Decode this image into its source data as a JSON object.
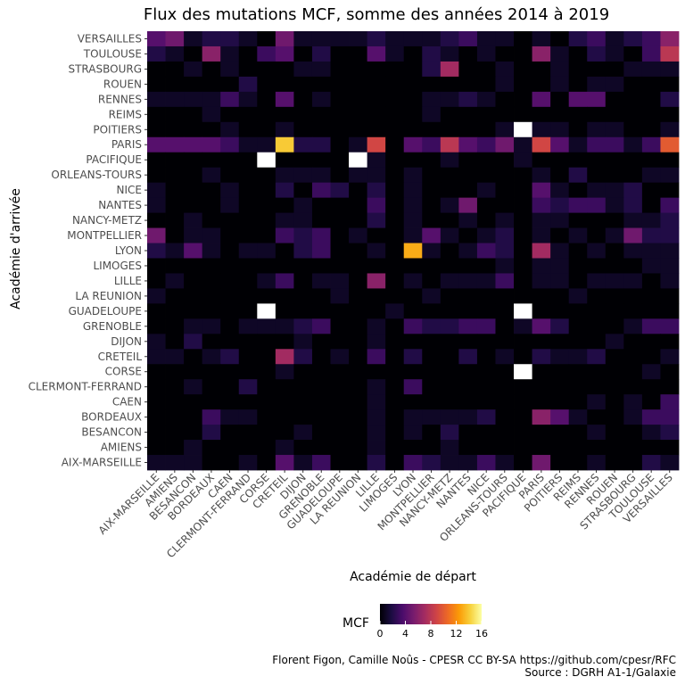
{
  "chart_data": {
    "type": "heatmap",
    "title": "Flux des mutations MCF, somme des années 2014 à 2019",
    "xlabel": "Académie de départ",
    "ylabel": "Académie d'arrivée",
    "x": [
      "AIX-MARSEILLE",
      "AMIENS",
      "BESANCON",
      "BORDEAUX",
      "CAEN",
      "CLERMONT-FERRAND",
      "CORSE",
      "CRETEIL",
      "DIJON",
      "GRENOBLE",
      "GUADELOUPE",
      "LA REUNION",
      "LILLE",
      "LIMOGES",
      "LYON",
      "MONTPELLIER",
      "NANCY-METZ",
      "NANTES",
      "NICE",
      "ORLEANS-TOURS",
      "PACIFIQUE",
      "PARIS",
      "POITIERS",
      "REIMS",
      "RENNES",
      "ROUEN",
      "STRASBOURG",
      "TOULOUSE",
      "VERSAILLES"
    ],
    "y": [
      "VERSAILLES",
      "TOULOUSE",
      "STRASBOURG",
      "ROUEN",
      "RENNES",
      "REIMS",
      "POITIERS",
      "PARIS",
      "PACIFIQUE",
      "ORLEANS-TOURS",
      "NICE",
      "NANTES",
      "NANCY-METZ",
      "MONTPELLIER",
      "LYON",
      "LIMOGES",
      "LILLE",
      "LA REUNION",
      "GUADELOUPE",
      "GRENOBLE",
      "DIJON",
      "CRETEIL",
      "CORSE",
      "CLERMONT-FERRAND",
      "CAEN",
      "BORDEAUX",
      "BESANCON",
      "AMIENS",
      "AIX-MARSEILLE"
    ],
    "values": [
      [
        4,
        5,
        1,
        2,
        2,
        1,
        0,
        5,
        1,
        1,
        1,
        1,
        2,
        1,
        1,
        1,
        2,
        3,
        1,
        1,
        0,
        1,
        0,
        2,
        3,
        1,
        2,
        3,
        6
      ],
      [
        2,
        1,
        0,
        6,
        1,
        0,
        3,
        4,
        0,
        2,
        0,
        0,
        4,
        1,
        0,
        2,
        1,
        0,
        1,
        0,
        0,
        6,
        1,
        0,
        2,
        1,
        0,
        3,
        8
      ],
      [
        0,
        0,
        1,
        0,
        1,
        0,
        0,
        0,
        1,
        1,
        0,
        0,
        0,
        0,
        0,
        2,
        7,
        0,
        0,
        1,
        0,
        0,
        1,
        0,
        0,
        0,
        1,
        1,
        1
      ],
      [
        0,
        0,
        0,
        0,
        0,
        2,
        0,
        0,
        0,
        0,
        0,
        0,
        0,
        0,
        0,
        0,
        0,
        0,
        0,
        1,
        0,
        0,
        1,
        0,
        1,
        1,
        0,
        0,
        0
      ],
      [
        1,
        1,
        1,
        1,
        3,
        1,
        0,
        4,
        0,
        1,
        0,
        0,
        0,
        0,
        0,
        1,
        1,
        2,
        1,
        0,
        0,
        4,
        0,
        4,
        4,
        0,
        0,
        0,
        2
      ],
      [
        0,
        0,
        0,
        1,
        0,
        0,
        0,
        0,
        0,
        0,
        0,
        0,
        0,
        0,
        0,
        1,
        0,
        0,
        0,
        0,
        0,
        0,
        0,
        0,
        0,
        0,
        0,
        0,
        0
      ],
      [
        0,
        0,
        0,
        0,
        1,
        0,
        0,
        1,
        0,
        0,
        0,
        0,
        0,
        0,
        0,
        0,
        0,
        0,
        0,
        1,
        16,
        1,
        1,
        0,
        1,
        1,
        0,
        0,
        1
      ],
      [
        4,
        4,
        4,
        4,
        3,
        1,
        1,
        14,
        2,
        2,
        0,
        1,
        9,
        0,
        4,
        3,
        8,
        4,
        3,
        5,
        1,
        9,
        4,
        1,
        3,
        3,
        1,
        3,
        10
      ],
      [
        0,
        0,
        0,
        0,
        0,
        0,
        16,
        0,
        0,
        0,
        0,
        16,
        1,
        0,
        0,
        0,
        1,
        0,
        0,
        0,
        1,
        0,
        0,
        0,
        0,
        0,
        0,
        0,
        0
      ],
      [
        0,
        0,
        0,
        1,
        0,
        0,
        0,
        1,
        1,
        1,
        0,
        1,
        1,
        0,
        1,
        0,
        0,
        0,
        0,
        0,
        0,
        1,
        0,
        2,
        0,
        0,
        0,
        1,
        1
      ],
      [
        1,
        0,
        0,
        0,
        1,
        0,
        0,
        2,
        0,
        3,
        2,
        0,
        2,
        0,
        1,
        0,
        0,
        0,
        1,
        0,
        0,
        4,
        1,
        0,
        1,
        1,
        2,
        0,
        0
      ],
      [
        1,
        0,
        0,
        0,
        1,
        0,
        0,
        0,
        1,
        0,
        0,
        0,
        3,
        0,
        1,
        0,
        1,
        5,
        0,
        0,
        0,
        3,
        2,
        3,
        3,
        1,
        2,
        0,
        3
      ],
      [
        0,
        0,
        1,
        0,
        0,
        0,
        0,
        1,
        1,
        0,
        0,
        0,
        2,
        0,
        1,
        0,
        0,
        1,
        0,
        1,
        0,
        1,
        1,
        0,
        0,
        0,
        1,
        1,
        2
      ],
      [
        5,
        0,
        1,
        1,
        0,
        0,
        0,
        3,
        2,
        3,
        0,
        1,
        0,
        0,
        1,
        4,
        1,
        0,
        1,
        2,
        0,
        1,
        0,
        1,
        0,
        1,
        5,
        2,
        2
      ],
      [
        2,
        1,
        4,
        1,
        0,
        1,
        1,
        0,
        2,
        3,
        0,
        0,
        1,
        0,
        13,
        1,
        0,
        1,
        3,
        2,
        0,
        7,
        1,
        0,
        1,
        0,
        1,
        1,
        1
      ],
      [
        0,
        0,
        0,
        0,
        0,
        0,
        0,
        0,
        0,
        0,
        0,
        0,
        0,
        0,
        0,
        0,
        0,
        0,
        0,
        1,
        0,
        1,
        1,
        0,
        0,
        0,
        0,
        1,
        1
      ],
      [
        0,
        1,
        0,
        0,
        0,
        0,
        1,
        3,
        0,
        1,
        1,
        0,
        6,
        0,
        1,
        0,
        1,
        1,
        1,
        3,
        0,
        1,
        1,
        0,
        1,
        1,
        1,
        0,
        1
      ],
      [
        1,
        0,
        0,
        0,
        0,
        0,
        0,
        0,
        0,
        0,
        1,
        0,
        0,
        0,
        0,
        1,
        0,
        0,
        0,
        0,
        0,
        0,
        0,
        1,
        0,
        0,
        0,
        0,
        0
      ],
      [
        0,
        0,
        0,
        0,
        0,
        0,
        16,
        0,
        0,
        0,
        0,
        0,
        0,
        1,
        0,
        0,
        0,
        0,
        0,
        0,
        16,
        0,
        0,
        0,
        0,
        0,
        0,
        0,
        0
      ],
      [
        0,
        0,
        1,
        1,
        0,
        1,
        1,
        1,
        2,
        3,
        0,
        0,
        1,
        0,
        3,
        2,
        2,
        3,
        3,
        0,
        1,
        4,
        2,
        0,
        0,
        0,
        1,
        3,
        3
      ],
      [
        1,
        0,
        2,
        0,
        0,
        0,
        0,
        0,
        1,
        0,
        0,
        0,
        1,
        0,
        0,
        0,
        0,
        0,
        0,
        0,
        0,
        0,
        0,
        0,
        0,
        1,
        0,
        0,
        0
      ],
      [
        1,
        1,
        0,
        1,
        2,
        0,
        0,
        7,
        2,
        0,
        1,
        0,
        3,
        0,
        2,
        0,
        0,
        2,
        0,
        1,
        0,
        2,
        1,
        1,
        2,
        0,
        0,
        0,
        1
      ],
      [
        0,
        0,
        0,
        0,
        0,
        0,
        0,
        1,
        0,
        0,
        0,
        0,
        0,
        0,
        0,
        0,
        0,
        0,
        0,
        0,
        16,
        0,
        0,
        0,
        0,
        0,
        0,
        1,
        0
      ],
      [
        0,
        0,
        1,
        0,
        0,
        2,
        0,
        0,
        0,
        0,
        0,
        0,
        1,
        0,
        3,
        0,
        0,
        0,
        0,
        0,
        0,
        0,
        0,
        0,
        0,
        0,
        0,
        0,
        0
      ],
      [
        0,
        0,
        0,
        0,
        0,
        0,
        0,
        0,
        0,
        0,
        0,
        0,
        1,
        0,
        0,
        0,
        0,
        0,
        0,
        0,
        0,
        0,
        0,
        0,
        1,
        0,
        1,
        0,
        3
      ],
      [
        0,
        0,
        0,
        3,
        1,
        1,
        0,
        0,
        0,
        0,
        0,
        0,
        1,
        0,
        1,
        1,
        1,
        1,
        2,
        0,
        0,
        6,
        4,
        1,
        0,
        0,
        1,
        3,
        3
      ],
      [
        0,
        0,
        0,
        2,
        0,
        0,
        0,
        0,
        1,
        0,
        0,
        0,
        1,
        0,
        1,
        0,
        2,
        0,
        0,
        0,
        0,
        0,
        0,
        0,
        1,
        0,
        0,
        1,
        2
      ],
      [
        0,
        0,
        1,
        0,
        0,
        0,
        0,
        1,
        0,
        0,
        0,
        0,
        1,
        0,
        0,
        0,
        1,
        0,
        0,
        0,
        0,
        0,
        0,
        0,
        0,
        0,
        0,
        0,
        0
      ],
      [
        1,
        1,
        1,
        0,
        0,
        1,
        0,
        4,
        1,
        3,
        0,
        0,
        2,
        0,
        3,
        2,
        1,
        1,
        3,
        1,
        0,
        5,
        0,
        0,
        1,
        0,
        0,
        2,
        1
      ]
    ],
    "color_scale": {
      "name": "inferno",
      "domain": [
        0,
        16
      ],
      "ticks": [
        0,
        4,
        8,
        12,
        16
      ],
      "stops": [
        "#000004",
        "#1b0c41",
        "#4a0c6b",
        "#781c6d",
        "#a52c60",
        "#cf4446",
        "#ed6925",
        "#fb9b06",
        "#f7d13d",
        "#fcffa4"
      ]
    },
    "legend": {
      "title": "MCF",
      "position": "bottom"
    },
    "grid": false
  },
  "caption": {
    "line1": "Florent Figon, Camille Noûs - CPESR CC BY-SA https://github.com/cpesr/RFC",
    "line2": "Source : DGRH A1-1/Galaxie"
  }
}
